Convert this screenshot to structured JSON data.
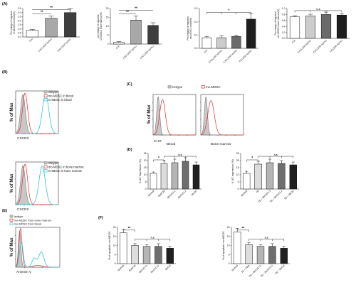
{
  "panels": {
    "A": {
      "label": "(A)",
      "charts": [
        {
          "ylabel": [
            "Percentage of migrated",
            "G-MDSCs in blood(%)"
          ],
          "yticks": [
            "0.0",
            "0.5",
            "1.0",
            "1.5",
            "2.0",
            "2.5",
            "3.0",
            "3.5"
          ],
          "categories": [
            "Con",
            "CXCL1(50 ng/mL)",
            "CXCL2(50 ng/mL)"
          ],
          "values": [
            0.8,
            2.3,
            3.0
          ],
          "errors": [
            0.12,
            0.3,
            0.5
          ],
          "ymax": 3.5,
          "fills": [
            "#ffffff",
            "#a8a8a8",
            "#3e3e3e"
          ],
          "sig": [
            {
              "from": 0,
              "to": 1,
              "label": "**",
              "y": 2.85
            },
            {
              "from": 0,
              "to": 2,
              "label": "**",
              "y": 3.35
            }
          ]
        },
        {
          "ylabel": [
            "percentage of migrated",
            "G-MDSCs bone marrow(%)"
          ],
          "yticks": [
            "0",
            "5",
            "10",
            "15",
            "20"
          ],
          "categories": [
            "Con",
            "CXCL1(50 ng/mL)",
            "CXCL2(50 ng/mL)"
          ],
          "values": [
            1.0,
            13.5,
            10.5
          ],
          "errors": [
            0.4,
            2.2,
            1.5
          ],
          "ymax": 20,
          "fills": [
            "#ffffff",
            "#a8a8a8",
            "#3e3e3e"
          ],
          "sig": [
            {
              "from": 0,
              "to": 1,
              "label": "**",
              "y": 17.0
            },
            {
              "from": 0,
              "to": 2,
              "label": "**",
              "y": 19.0
            }
          ]
        },
        {
          "ylabel": [
            "Percentage of migrated",
            "mo-MDSCs blood(%)"
          ],
          "yticks": [
            "0.0",
            "0.1",
            "0.2",
            "0.3"
          ],
          "categories": [
            "Con",
            "CXCL1(50 ng/mL)",
            "CXCL2(50 ng/mL)",
            "CCL2(50 ng/mL)"
          ],
          "values": [
            0.08,
            0.08,
            0.09,
            0.22
          ],
          "errors": [
            0.01,
            0.015,
            0.01,
            0.04
          ],
          "ymax": 0.3,
          "fills": [
            "#ffffff",
            "#cccccc",
            "#6a6a6a",
            "#1e1e1e"
          ],
          "sig": [
            {
              "from": 0,
              "to": 3,
              "label": "*",
              "y": 0.27,
              "bracket": true
            }
          ]
        },
        {
          "ylabel": [
            "Percentage of migrated",
            "mo-MDSCs bone marrow(%)"
          ],
          "yticks": [
            "0.0",
            "0.2",
            "0.4",
            "0.6",
            "0.8",
            "1.0"
          ],
          "categories": [
            "Con",
            "CXCL1(50 ng/mL)",
            "CXCL2(50 ng/mL)",
            "CCL2(50 ng/mL)"
          ],
          "values": [
            0.72,
            0.75,
            0.8,
            0.78
          ],
          "errors": [
            0.04,
            0.06,
            0.08,
            0.05
          ],
          "ymax": 1.0,
          "fills": [
            "#ffffff",
            "#cccccc",
            "#6a6a6a",
            "#1e1e1e"
          ],
          "sig": [
            {
              "from": 0,
              "to": 3,
              "label": "n.s",
              "y": 0.93,
              "bracket": true
            }
          ]
        }
      ]
    },
    "B": {
      "label": "(B)",
      "plots": [
        {
          "ylabel": "% of Max",
          "xlabel": "CXCR2",
          "legend": [
            "Isotype",
            "mo-MDSC in blood",
            "G-MDSC in blood"
          ]
        },
        {
          "ylabel": "% of Max",
          "xlabel": "CXCR2",
          "legend": [
            "Isotype",
            "mo-MDSC in bone marrow",
            "G-MDSC in bone marrow"
          ]
        }
      ]
    },
    "C": {
      "label": "(C)",
      "ylabel": "% of Max",
      "xlabel": "Ki-67",
      "legend": [
        "Isotype",
        "mo-MDSC"
      ],
      "subtitles": [
        "Blood",
        "Bone marrow"
      ]
    },
    "D": {
      "label": "(D)",
      "charts": [
        {
          "ylabel": "Ki-67 expression (%)",
          "yticks": [
            "0",
            "5",
            "10",
            "15",
            "20",
            "25"
          ],
          "categories": [
            "Normal",
            "B16F10",
            "ShCXCL1",
            "ShCXCL2",
            "ShCtrl"
          ],
          "values": [
            11,
            18,
            18.5,
            19.5,
            17
          ],
          "errors": [
            1.0,
            2.0,
            2.5,
            2.5,
            2.0
          ],
          "ymax": 25,
          "fills": [
            "#ffffff",
            "#dddddd",
            "#b5b5b5",
            "#6e6e6e",
            "#202020"
          ],
          "sig": [
            {
              "label": "*",
              "from": 0,
              "to": 1,
              "y": 20.5
            },
            {
              "label": "n.s",
              "from": 1,
              "to": 4,
              "y": 23.0
            }
          ]
        },
        {
          "ylabel": "Ki-67 expression (%)",
          "yticks": [
            "0",
            "5",
            "10",
            "15",
            "20",
            "25"
          ],
          "categories": [
            "Normal",
            "TB",
            "TB + ShCXCL1",
            "TB + ShCXCL2",
            "TB + ShCtrl"
          ],
          "values": [
            11,
            17.5,
            18.5,
            18,
            17
          ],
          "errors": [
            1.5,
            2.0,
            2.5,
            2.0,
            2.0
          ],
          "ymax": 25,
          "fills": [
            "#ffffff",
            "#dddddd",
            "#b5b5b5",
            "#6e6e6e",
            "#202020"
          ],
          "sig": [
            {
              "label": "*",
              "from": 0,
              "to": 1,
              "y": 20.5
            },
            {
              "label": "n.s",
              "from": 1,
              "to": 4,
              "y": 23.0
            }
          ]
        }
      ]
    },
    "E": {
      "label": "(E)",
      "ylabel": "% of Max",
      "xlabel": "Annexin V",
      "legend": [
        "Isotype",
        "mo-MDSC from bone marrow",
        "mo-MDSC from blood"
      ]
    },
    "F": {
      "label": "(F)",
      "charts": [
        {
          "ylabel": "% of apoptotic mo-MDSC",
          "yticks": [
            "0",
            "5",
            "10",
            "15",
            "20"
          ],
          "categories": [
            "Normal",
            "B16F10",
            "ShCXCL1",
            "ShCXCL2",
            "ShCtrl"
          ],
          "values": [
            17,
            10,
            9.5,
            9.5,
            8.5
          ],
          "errors": [
            2.0,
            1.0,
            1.0,
            1.5,
            1.0
          ],
          "ymax": 20,
          "fills": [
            "#ffffff",
            "#dddddd",
            "#b5b5b5",
            "#6e6e6e",
            "#202020"
          ],
          "sig": [
            {
              "label": "**",
              "from": 0,
              "to": 1,
              "y": 18.5
            },
            {
              "label": "n.s",
              "from": 1,
              "to": 4,
              "y": 13.5
            }
          ]
        },
        {
          "ylabel": "% of apoptotic mo-MDSC",
          "yticks": [
            "0",
            "5",
            "10",
            "15",
            "20"
          ],
          "categories": [
            "Normal",
            "TB + PBS",
            "TB + ShCXCL1",
            "TB + ShCXCL2",
            "TB + ShCtrl"
          ],
          "values": [
            17.5,
            10.5,
            9.5,
            9.5,
            8.5
          ],
          "errors": [
            2.0,
            1.0,
            1.0,
            1.5,
            1.0
          ],
          "ymax": 20,
          "fills": [
            "#ffffff",
            "#dddddd",
            "#b5b5b5",
            "#6e6e6e",
            "#202020"
          ],
          "sig": [
            {
              "label": "**",
              "from": 0,
              "to": 1,
              "y": 18.5
            },
            {
              "label": "n.s",
              "from": 1,
              "to": 4,
              "y": 13.5
            }
          ]
        }
      ]
    }
  },
  "colors": {
    "isotype": "#9a9a9a",
    "mo": "#e03030",
    "g": "#30c8d0"
  }
}
